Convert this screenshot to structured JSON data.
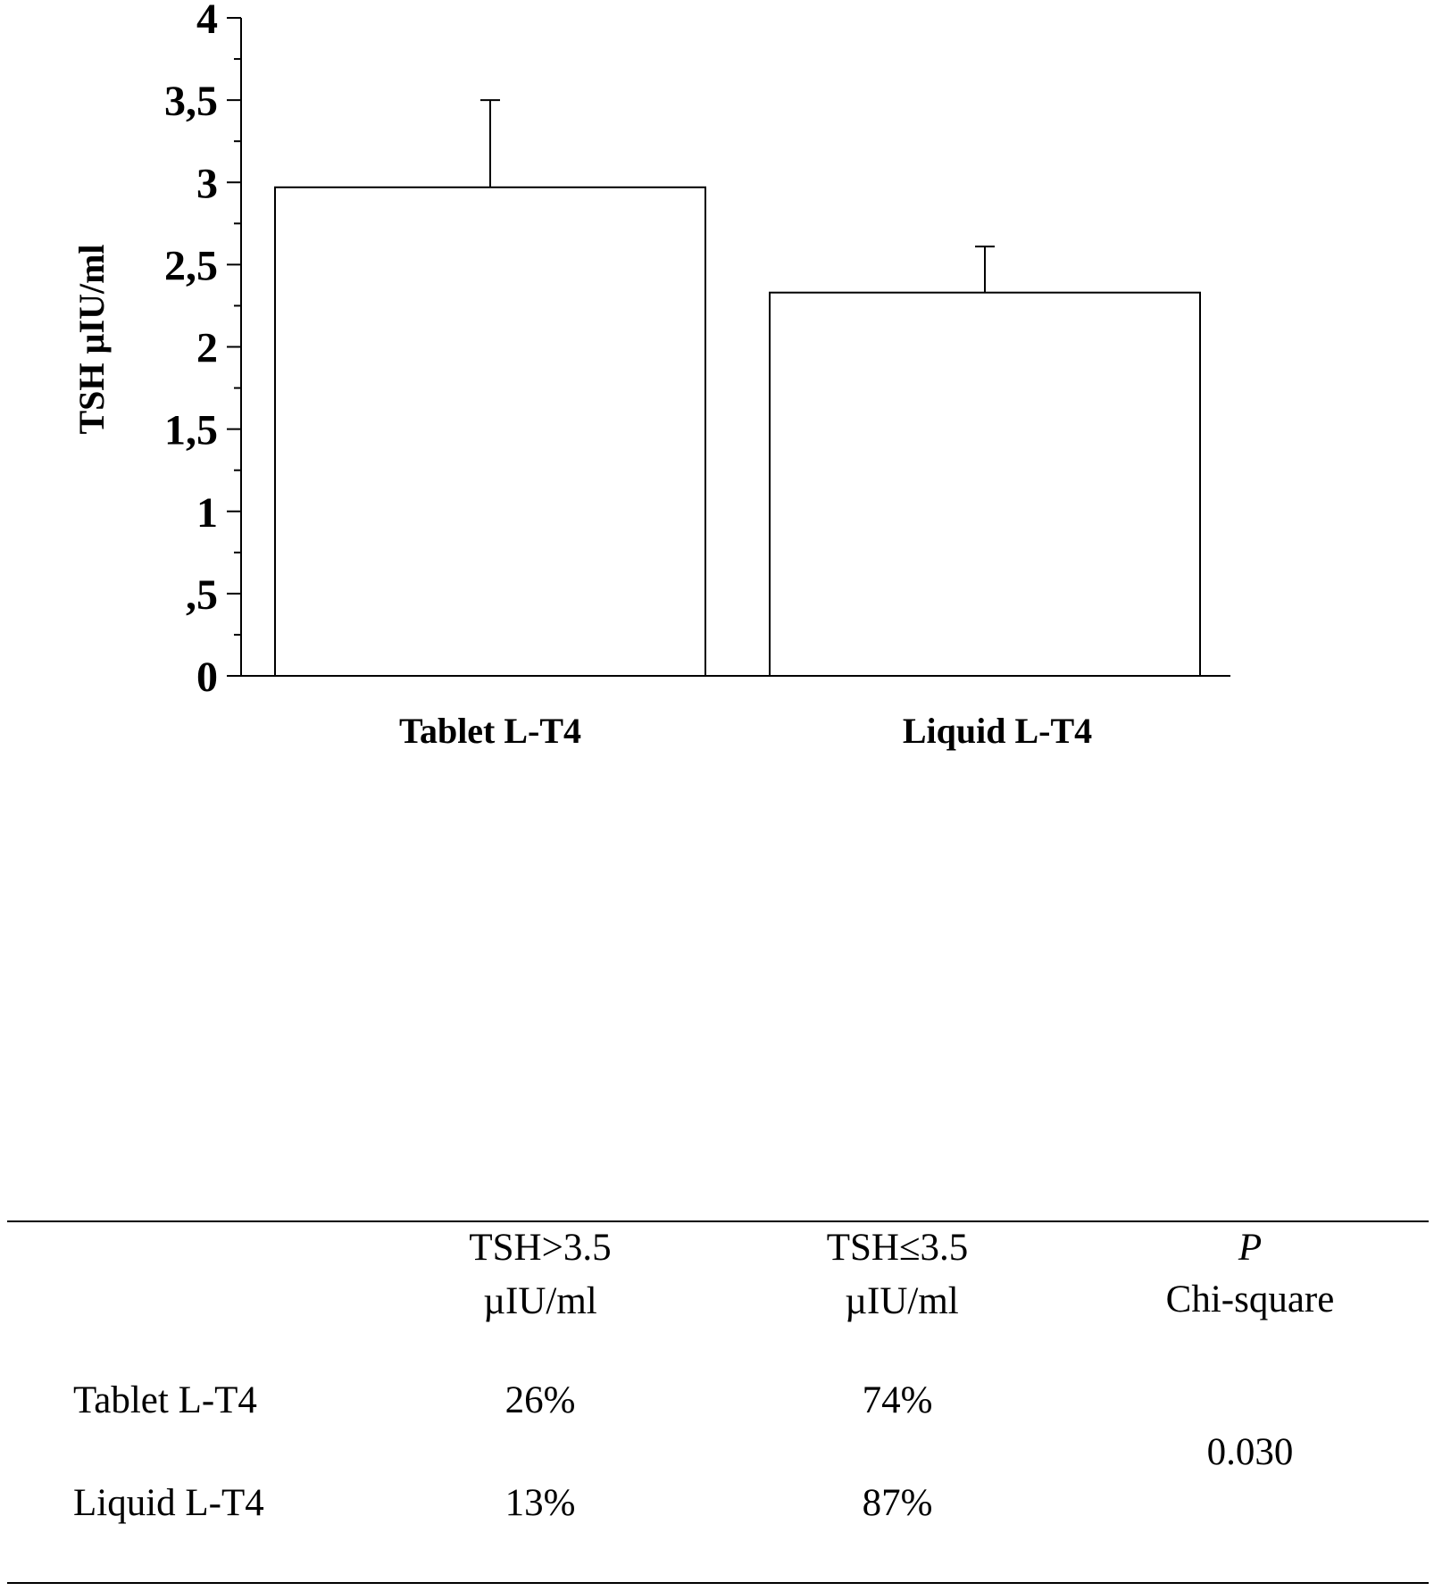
{
  "chart_data": {
    "type": "bar",
    "categories": [
      "Tablet L-T4",
      "Liquid L-T4"
    ],
    "values": [
      2.97,
      2.33
    ],
    "error_upper": [
      3.5,
      2.61
    ],
    "ylabel": "TSH µIU/ml",
    "ylim": [
      0,
      4
    ],
    "yticks": [
      "0",
      ",5",
      "1",
      "1,5",
      "2",
      "2,5",
      "3",
      "3,5",
      "4"
    ],
    "ytick_values": [
      0,
      0.5,
      1,
      1.5,
      2,
      2.5,
      3,
      3.5,
      4
    ],
    "grid": false,
    "bar_color": "#ffffff",
    "edge_color": "#000000"
  },
  "table": {
    "headers": {
      "col1_line1": "TSH>3.5",
      "col1_line2": "µIU/ml",
      "col2_line1": "TSH≤3.5",
      "col2_line2": "µIU/ml",
      "col3_line1": "P",
      "col3_line2": "Chi-square"
    },
    "rows": [
      {
        "label": "Tablet L-T4",
        "gt": "26%",
        "le": "74%"
      },
      {
        "label": "Liquid L-T4",
        "gt": "13%",
        "le": "87%"
      }
    ],
    "p_value": "0.030"
  }
}
